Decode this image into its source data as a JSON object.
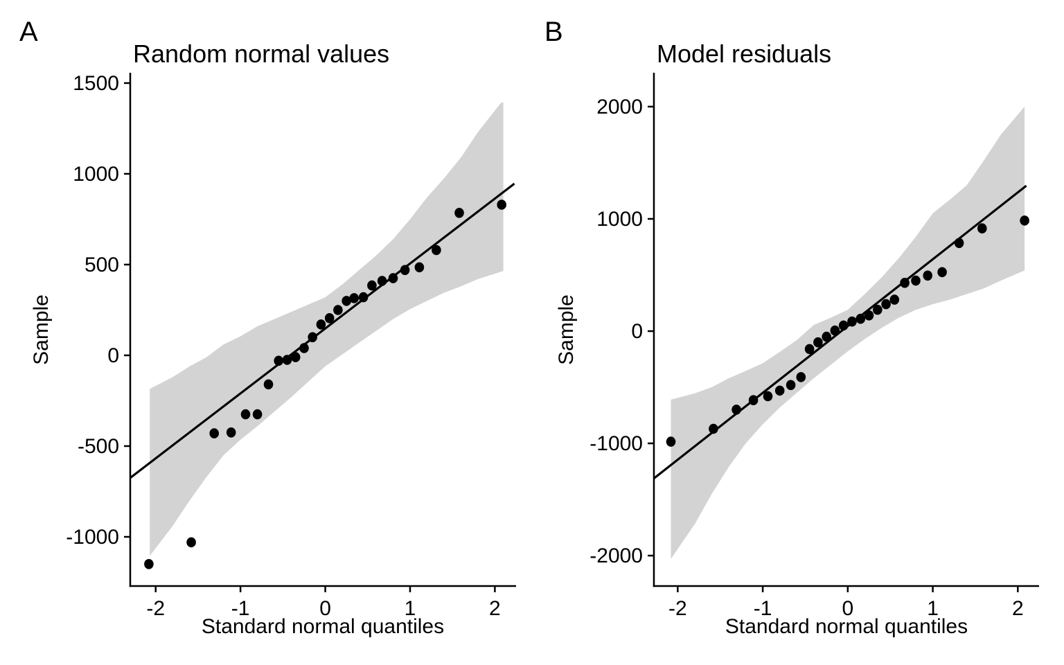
{
  "figure": {
    "background": "#ffffff",
    "text_color": "#000000",
    "band_color": "#d3d3d3",
    "point_color": "#000000",
    "line_color": "#000000"
  },
  "chart_data": [
    {
      "type": "scatter",
      "panel_tag": "A",
      "title": "Random normal values",
      "xlabel": "Standard normal quantiles",
      "ylabel": "Sample",
      "x_ticks": [
        -2,
        -1,
        0,
        1,
        2
      ],
      "y_ticks": [
        1500,
        1000,
        500,
        0,
        -500,
        -1000
      ],
      "xlim": [
        -2.3,
        2.25
      ],
      "ylim": [
        -1271,
        1557
      ],
      "grid": false,
      "legend": false,
      "points": [
        [
          -2.08,
          -1150
        ],
        [
          -1.58,
          -1030
        ],
        [
          -1.31,
          -430
        ],
        [
          -1.11,
          -425
        ],
        [
          -0.94,
          -325
        ],
        [
          -0.8,
          -325
        ],
        [
          -0.67,
          -160
        ],
        [
          -0.55,
          -30
        ],
        [
          -0.45,
          -25
        ],
        [
          -0.35,
          -10
        ],
        [
          -0.25,
          40
        ],
        [
          -0.15,
          100
        ],
        [
          -0.05,
          170
        ],
        [
          0.05,
          205
        ],
        [
          0.15,
          250
        ],
        [
          0.25,
          300
        ],
        [
          0.34,
          315
        ],
        [
          0.45,
          320
        ],
        [
          0.55,
          385
        ],
        [
          0.67,
          410
        ],
        [
          0.8,
          425
        ],
        [
          0.94,
          470
        ],
        [
          1.11,
          485
        ],
        [
          1.31,
          580
        ],
        [
          1.58,
          785
        ],
        [
          2.08,
          830
        ]
      ],
      "qq_line": {
        "endpoints": [
          [
            -2.3,
            -675
          ],
          [
            2.23,
            946
          ]
        ]
      },
      "confidence_band": {
        "q": [
          -2.07,
          -1.8,
          -1.6,
          -1.4,
          -1.2,
          -1.0,
          -0.8,
          -0.6,
          -0.4,
          -0.2,
          0,
          0.2,
          0.4,
          0.6,
          0.8,
          1.0,
          1.2,
          1.4,
          1.6,
          1.8,
          2.07,
          2.1
        ],
        "upper": [
          -185,
          -120,
          -60,
          -10,
          60,
          105,
          160,
          200,
          240,
          280,
          320,
          390,
          470,
          550,
          640,
          750,
          870,
          975,
          1090,
          1230,
          1390,
          1395
        ],
        "lower": [
          -1105,
          -940,
          -800,
          -670,
          -550,
          -465,
          -390,
          -310,
          -230,
          -145,
          -60,
          5,
          70,
          135,
          200,
          255,
          300,
          345,
          380,
          420,
          460,
          465
        ]
      }
    },
    {
      "type": "scatter",
      "panel_tag": "B",
      "title": "Model residuals",
      "xlabel": "Standard normal quantiles",
      "ylabel": "Sample",
      "x_ticks": [
        -2,
        -1,
        0,
        1,
        2
      ],
      "y_ticks": [
        2000,
        1000,
        0,
        -1000,
        -2000
      ],
      "xlim": [
        -2.28,
        2.25
      ],
      "ylim": [
        -2271,
        2302
      ],
      "grid": false,
      "legend": false,
      "points": [
        [
          -2.08,
          -985
        ],
        [
          -1.58,
          -870
        ],
        [
          -1.31,
          -700
        ],
        [
          -1.11,
          -615
        ],
        [
          -0.94,
          -580
        ],
        [
          -0.8,
          -530
        ],
        [
          -0.67,
          -480
        ],
        [
          -0.55,
          -410
        ],
        [
          -0.45,
          -160
        ],
        [
          -0.35,
          -100
        ],
        [
          -0.25,
          -50
        ],
        [
          -0.15,
          5
        ],
        [
          -0.05,
          50
        ],
        [
          0.05,
          85
        ],
        [
          0.15,
          110
        ],
        [
          0.25,
          140
        ],
        [
          0.35,
          190
        ],
        [
          0.45,
          240
        ],
        [
          0.55,
          280
        ],
        [
          0.67,
          430
        ],
        [
          0.8,
          450
        ],
        [
          0.94,
          495
        ],
        [
          1.11,
          525
        ],
        [
          1.31,
          785
        ],
        [
          1.58,
          915
        ],
        [
          2.08,
          985
        ]
      ],
      "qq_line": {
        "endpoints": [
          [
            -2.28,
            -1312
          ],
          [
            2.1,
            1295
          ]
        ]
      },
      "confidence_band": {
        "q": [
          -2.08,
          -1.8,
          -1.6,
          -1.4,
          -1.2,
          -1.0,
          -0.8,
          -0.6,
          -0.4,
          -0.2,
          0,
          0.2,
          0.4,
          0.6,
          0.8,
          1.0,
          1.2,
          1.4,
          1.6,
          1.8,
          2.08
        ],
        "upper": [
          -610,
          -555,
          -500,
          -420,
          -355,
          -285,
          -185,
          -80,
          55,
          120,
          190,
          330,
          480,
          650,
          840,
          1050,
          1170,
          1300,
          1520,
          1750,
          2000
        ],
        "lower": [
          -2030,
          -1720,
          -1450,
          -1210,
          -1000,
          -830,
          -680,
          -550,
          -420,
          -300,
          -180,
          -70,
          30,
          120,
          190,
          240,
          280,
          330,
          380,
          450,
          540
        ]
      }
    }
  ]
}
